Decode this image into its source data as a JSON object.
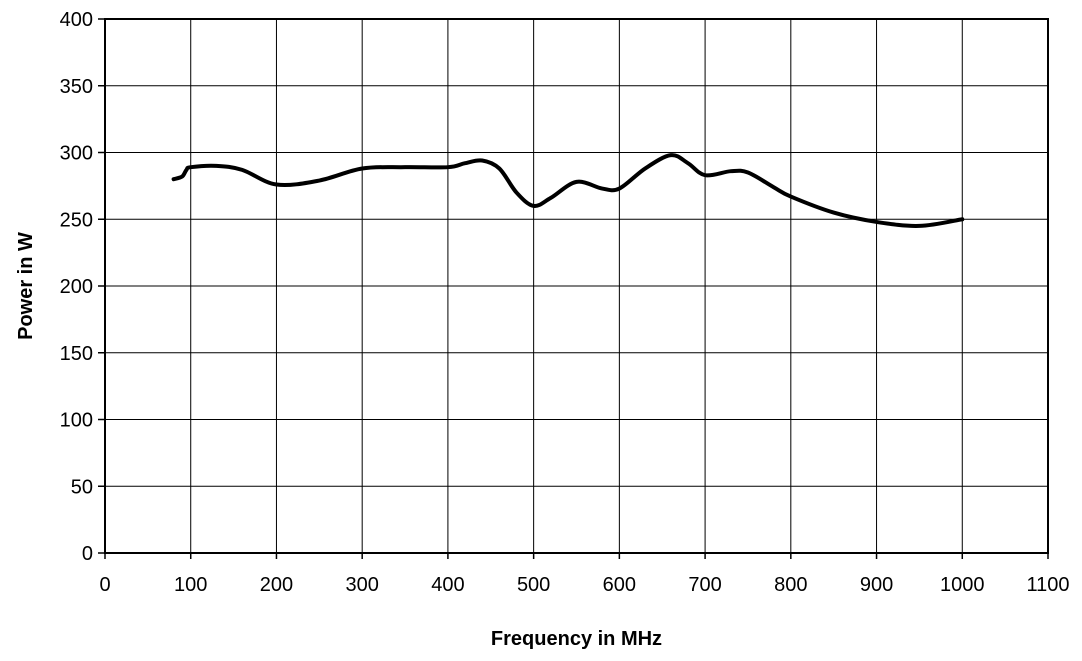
{
  "chart_data": {
    "type": "line",
    "xlabel": "Frequency in MHz",
    "ylabel": "Power in W",
    "xlim": [
      0,
      1100
    ],
    "ylim": [
      0,
      400
    ],
    "x_ticks": [
      0,
      100,
      200,
      300,
      400,
      500,
      600,
      700,
      800,
      900,
      1000,
      1100
    ],
    "y_ticks": [
      0,
      50,
      100,
      150,
      200,
      250,
      300,
      350,
      400
    ],
    "grid": true,
    "line_color": "#000000",
    "series": [
      {
        "x": [
          80,
          90,
          95,
          100,
          130,
          160,
          200,
          250,
          300,
          350,
          400,
          420,
          440,
          460,
          480,
          500,
          520,
          550,
          580,
          600,
          630,
          660,
          680,
          700,
          730,
          750,
          780,
          800,
          850,
          900,
          950,
          1000
        ],
        "y": [
          280,
          282,
          287,
          289,
          290,
          287,
          276,
          279,
          288,
          289,
          289,
          292,
          294,
          288,
          270,
          260,
          266,
          278,
          273,
          273,
          288,
          298,
          292,
          283,
          286,
          285,
          274,
          267,
          255,
          248,
          245,
          250
        ]
      }
    ]
  }
}
